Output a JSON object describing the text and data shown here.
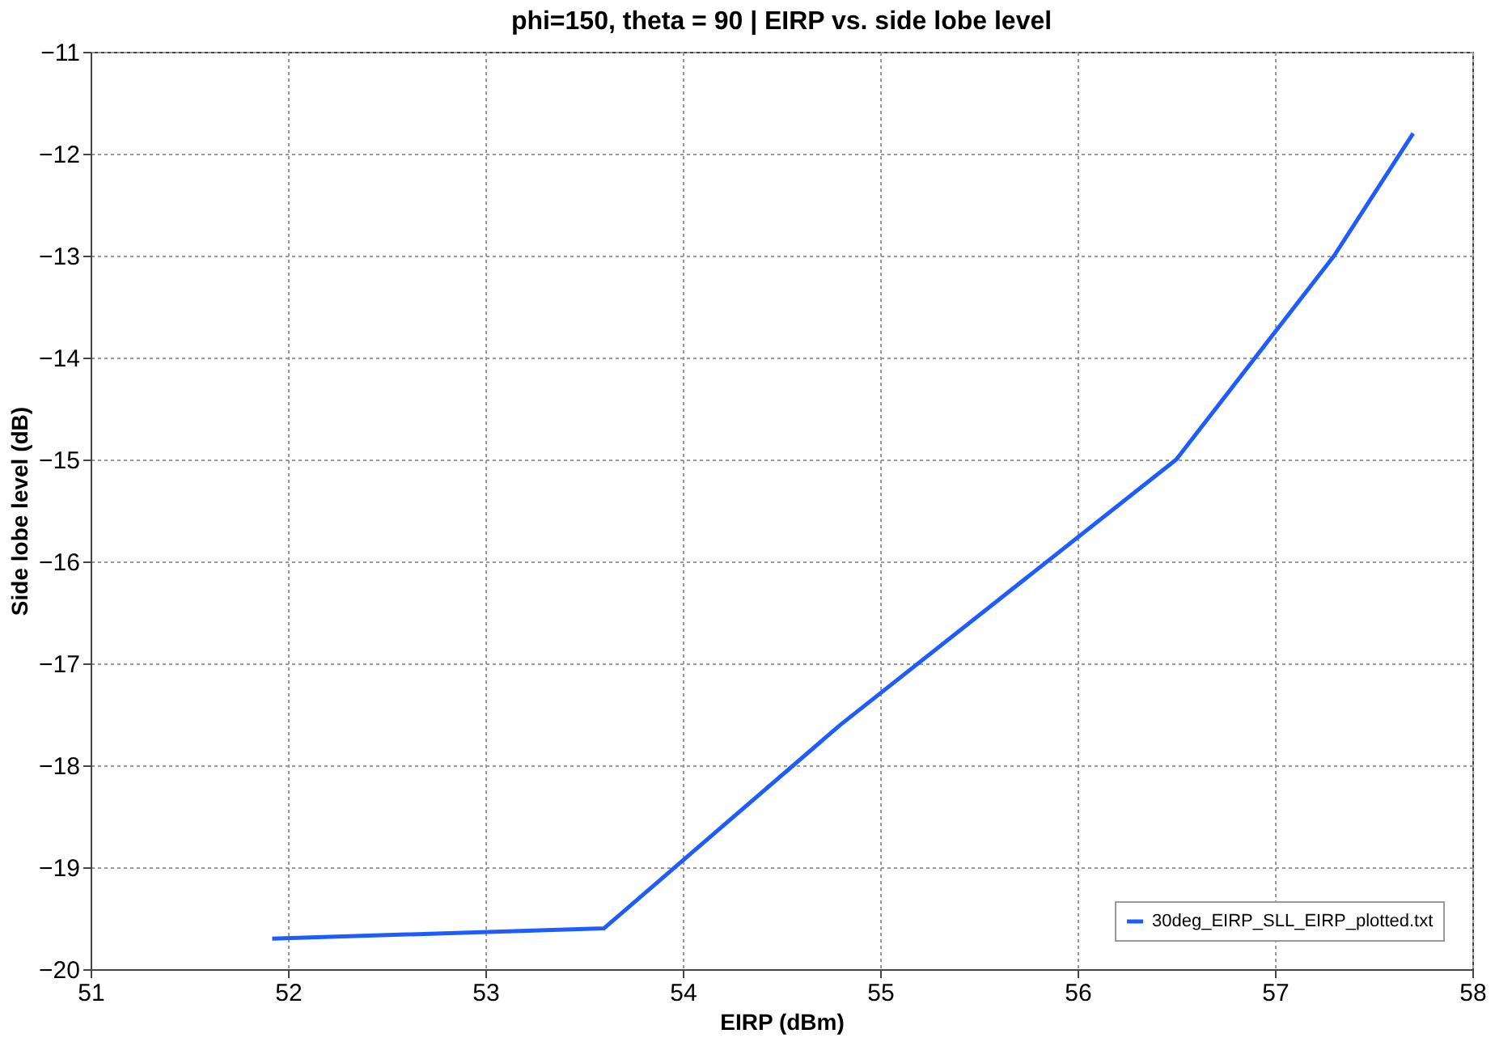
{
  "chart_data": {
    "type": "line",
    "title": "phi=150, theta = 90 | EIRP vs. side lobe level",
    "xlabel": "EIRP (dBm)",
    "ylabel": "Side lobe level (dB)",
    "series": [
      {
        "name": "30deg_EIRP_SLL_EIRP_plotted.txt",
        "color": "#1f5cff",
        "x": [
          51.92,
          53.6,
          54.8,
          56.5,
          57.3,
          57.7
        ],
        "values": [
          -19.7,
          -19.6,
          -17.6,
          -15.0,
          -13.0,
          -11.8
        ]
      }
    ],
    "xlim": [
      51,
      58
    ],
    "xticks": [
      51,
      52,
      53,
      54,
      55,
      56,
      57,
      58
    ],
    "ylim": [
      -20,
      -11
    ],
    "yticks": [
      -20,
      -19,
      -18,
      -17,
      -16,
      -15,
      -14,
      -13,
      -12,
      -11
    ],
    "grid": true,
    "legend": "bottom right",
    "marker": "none",
    "line_style": "solid"
  }
}
